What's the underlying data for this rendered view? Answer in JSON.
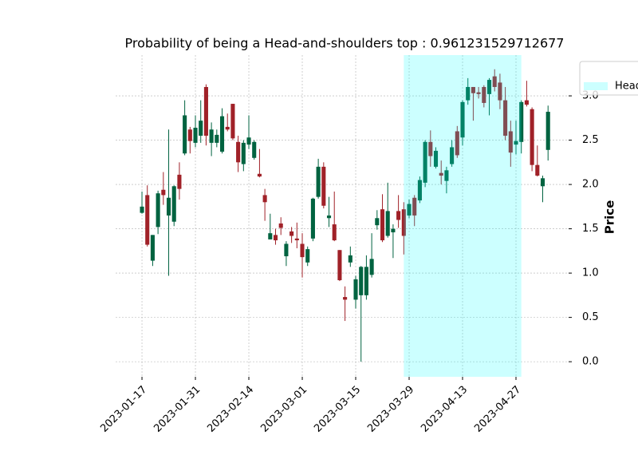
{
  "chart_data": {
    "type": "candlestick",
    "title": "Probability of being a Head-and-shoulders top : 0.961231529712677",
    "y_label": "Price",
    "x": [
      "2023-01-17",
      "2023-01-18",
      "2023-01-19",
      "2023-01-20",
      "2023-01-23",
      "2023-01-24",
      "2023-01-25",
      "2023-01-26",
      "2023-01-27",
      "2023-01-30",
      "2023-01-31",
      "2023-02-01",
      "2023-02-02",
      "2023-02-03",
      "2023-02-06",
      "2023-02-07",
      "2023-02-08",
      "2023-02-09",
      "2023-02-10",
      "2023-02-13",
      "2023-02-14",
      "2023-02-15",
      "2023-02-16",
      "2023-02-17",
      "2023-02-21",
      "2023-02-22",
      "2023-02-23",
      "2023-02-24",
      "2023-02-27",
      "2023-02-28",
      "2023-03-01",
      "2023-03-02",
      "2023-03-03",
      "2023-03-06",
      "2023-03-07",
      "2023-03-08",
      "2023-03-09",
      "2023-03-10",
      "2023-03-13",
      "2023-03-14",
      "2023-03-15",
      "2023-03-16",
      "2023-03-17",
      "2023-03-20",
      "2023-03-21",
      "2023-03-22",
      "2023-03-23",
      "2023-03-24",
      "2023-03-27",
      "2023-03-28",
      "2023-03-29",
      "2023-03-30",
      "2023-03-31",
      "2023-04-03",
      "2023-04-04",
      "2023-04-05",
      "2023-04-06",
      "2023-04-10",
      "2023-04-11",
      "2023-04-12",
      "2023-04-13",
      "2023-04-14",
      "2023-04-17",
      "2023-04-18",
      "2023-04-19",
      "2023-04-20",
      "2023-04-21",
      "2023-04-24",
      "2023-04-25",
      "2023-04-26",
      "2023-04-27",
      "2023-04-28",
      "2023-05-01",
      "2023-05-02",
      "2023-05-03",
      "2023-05-04",
      "2023-05-05"
    ],
    "open": [
      1.68,
      1.88,
      1.14,
      1.52,
      1.94,
      1.65,
      1.58,
      2.11,
      2.35,
      2.62,
      2.47,
      2.55,
      3.1,
      2.47,
      2.47,
      2.37,
      2.65,
      2.91,
      2.48,
      2.23,
      2.45,
      2.3,
      2.12,
      1.88,
      1.38,
      1.43,
      1.56,
      1.19,
      1.47,
      1.39,
      1.33,
      1.12,
      1.39,
      1.86,
      2.2,
      1.62,
      1.55,
      1.26,
      0.73,
      1.12,
      0.7,
      0.75,
      0.75,
      0.98,
      1.54,
      1.72,
      1.42,
      1.46,
      1.7,
      1.72,
      1.65,
      1.85,
      1.82,
      2.02,
      2.48,
      2.2,
      2.13,
      2.04,
      2.23,
      2.6,
      2.53,
      2.95,
      3.1,
      3.04,
      3.1,
      3.02,
      3.22,
      3.15,
      2.95,
      2.6,
      2.45,
      2.48,
      2.95,
      2.85,
      2.22,
      1.98,
      2.39
    ],
    "high": [
      1.92,
      1.99,
      1.43,
      1.93,
      2.14,
      2.62,
      1.99,
      2.25,
      2.95,
      2.65,
      2.78,
      2.95,
      3.13,
      2.7,
      2.62,
      2.86,
      2.8,
      2.91,
      2.55,
      2.5,
      2.78,
      2.5,
      2.4,
      1.95,
      1.67,
      1.5,
      1.63,
      1.36,
      1.52,
      1.57,
      1.45,
      1.3,
      1.85,
      2.29,
      2.25,
      1.86,
      1.92,
      1.26,
      0.85,
      1.3,
      0.97,
      1.08,
      1.2,
      1.45,
      1.71,
      1.89,
      2.02,
      1.55,
      1.88,
      1.8,
      1.83,
      1.88,
      2.09,
      2.5,
      2.61,
      2.42,
      2.27,
      2.2,
      2.5,
      2.66,
      2.95,
      3.2,
      3.1,
      3.1,
      3.12,
      3.2,
      3.3,
      3.25,
      3.1,
      2.72,
      2.72,
      2.95,
      3.17,
      2.87,
      2.44,
      2.1,
      2.89
    ],
    "low": [
      1.67,
      1.3,
      1.08,
      1.44,
      1.77,
      0.97,
      1.53,
      1.83,
      2.33,
      2.35,
      2.42,
      2.47,
      2.44,
      2.32,
      2.42,
      2.35,
      2.6,
      2.5,
      2.14,
      2.15,
      2.4,
      2.28,
      2.08,
      1.59,
      1.38,
      1.32,
      1.43,
      1.08,
      1.34,
      1.28,
      0.95,
      1.08,
      1.36,
      1.84,
      1.73,
      1.52,
      1.36,
      0.91,
      0.46,
      1.07,
      0.6,
      0.0,
      0.7,
      0.95,
      1.49,
      1.35,
      1.4,
      1.17,
      1.51,
      1.21,
      1.62,
      1.53,
      1.79,
      1.97,
      2.2,
      2.18,
      2.0,
      1.9,
      2.2,
      2.3,
      2.44,
      2.9,
      2.72,
      2.97,
      2.87,
      2.78,
      3.05,
      2.85,
      2.5,
      2.2,
      2.34,
      2.35,
      2.88,
      2.15,
      2.09,
      1.8,
      2.27
    ],
    "close": [
      1.75,
      1.32,
      1.43,
      1.9,
      1.88,
      1.85,
      1.98,
      1.95,
      2.78,
      2.49,
      2.64,
      2.72,
      2.55,
      2.62,
      2.56,
      2.77,
      2.62,
      2.52,
      2.25,
      2.47,
      2.53,
      2.48,
      2.09,
      1.8,
      1.45,
      1.37,
      1.51,
      1.33,
      1.42,
      1.37,
      1.18,
      1.27,
      1.84,
      2.2,
      1.76,
      1.65,
      1.37,
      0.92,
      0.7,
      1.2,
      0.93,
      1.07,
      1.07,
      1.16,
      1.62,
      1.37,
      1.7,
      1.5,
      1.6,
      1.42,
      1.78,
      1.65,
      2.05,
      2.48,
      2.32,
      2.38,
      2.1,
      2.16,
      2.42,
      2.33,
      2.93,
      3.1,
      3.03,
      3.02,
      2.92,
      3.18,
      3.1,
      2.95,
      2.55,
      2.36,
      2.49,
      2.93,
      2.9,
      2.22,
      2.1,
      2.07,
      2.82
    ],
    "up_color": "#006340",
    "down_color": "#a02128",
    "span": {
      "start": "2023-03-28",
      "end": "2023-04-28",
      "name": "Head-and-shoulders top",
      "color": "#00ffff",
      "alpha": 0.2
    },
    "xlim": [
      -4.93,
      79.85
    ],
    "ylim": [
      -0.17,
      3.46
    ],
    "xticks": [
      {
        "value": 0,
        "label": "2023-01-17"
      },
      {
        "value": 10,
        "label": "2023-01-31"
      },
      {
        "value": 20,
        "label": "2023-02-14"
      },
      {
        "value": 30,
        "label": "2023-03-01"
      },
      {
        "value": 40,
        "label": "2023-03-15"
      },
      {
        "value": 50,
        "label": "2023-03-29"
      },
      {
        "value": 60,
        "label": "2023-04-13"
      },
      {
        "value": 70,
        "label": "2023-04-27"
      }
    ],
    "yticks": [
      {
        "value": 0,
        "label": "0.0"
      },
      {
        "value": 0.5,
        "label": "0.5"
      },
      {
        "value": 1,
        "label": "1.0"
      },
      {
        "value": 1.5,
        "label": "1.5"
      },
      {
        "value": 2,
        "label": "2.0"
      },
      {
        "value": 2.5,
        "label": "2.5"
      },
      {
        "value": 3,
        "label": "3.0"
      }
    ],
    "grid": true,
    "legend": "upper right"
  }
}
